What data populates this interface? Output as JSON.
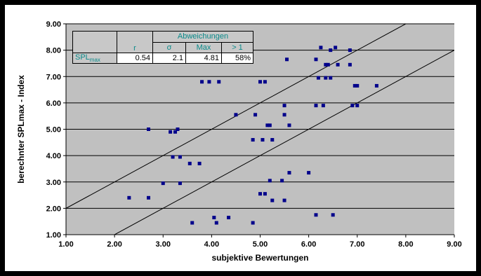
{
  "chart_data": {
    "type": "scatter",
    "xlabel": "subjektive Bewertungen",
    "ylabel": "berechnter SPLmax - Index",
    "xlim": [
      1,
      9
    ],
    "ylim": [
      1,
      9
    ],
    "xticks": [
      "1.00",
      "2.00",
      "3.00",
      "4.00",
      "5.00",
      "6.00",
      "7.00",
      "8.00",
      "9.00"
    ],
    "yticks": [
      "1.00",
      "2.00",
      "3.00",
      "4.00",
      "5.00",
      "6.00",
      "7.00",
      "8.00",
      "9.00"
    ],
    "grid": "horizontal",
    "point_color": "#00008b",
    "lines": [
      {
        "x": [
          1.0,
          8.0
        ],
        "y": [
          2.0,
          9.0
        ]
      },
      {
        "x": [
          2.0,
          9.0
        ],
        "y": [
          1.0,
          8.0
        ]
      }
    ],
    "points": [
      [
        2.3,
        2.4
      ],
      [
        2.7,
        2.4
      ],
      [
        2.7,
        5.0
      ],
      [
        3.0,
        2.95
      ],
      [
        3.15,
        4.9
      ],
      [
        3.2,
        3.95
      ],
      [
        3.25,
        4.9
      ],
      [
        3.3,
        5.0
      ],
      [
        3.35,
        2.95
      ],
      [
        3.35,
        3.95
      ],
      [
        3.55,
        3.7
      ],
      [
        3.6,
        1.45
      ],
      [
        3.75,
        3.7
      ],
      [
        3.8,
        6.8
      ],
      [
        3.95,
        6.8
      ],
      [
        4.05,
        1.65
      ],
      [
        4.1,
        1.45
      ],
      [
        4.15,
        6.8
      ],
      [
        4.35,
        1.65
      ],
      [
        4.5,
        5.55
      ],
      [
        4.85,
        1.45
      ],
      [
        4.85,
        4.6
      ],
      [
        4.9,
        5.55
      ],
      [
        5.0,
        6.8
      ],
      [
        5.0,
        2.55
      ],
      [
        5.05,
        4.6
      ],
      [
        5.1,
        6.8
      ],
      [
        5.1,
        2.55
      ],
      [
        5.15,
        5.15
      ],
      [
        5.2,
        3.05
      ],
      [
        5.2,
        5.15
      ],
      [
        5.25,
        4.6
      ],
      [
        5.25,
        2.3
      ],
      [
        5.45,
        3.05
      ],
      [
        5.5,
        2.3
      ],
      [
        5.5,
        5.55
      ],
      [
        5.5,
        5.9
      ],
      [
        5.55,
        7.65
      ],
      [
        5.6,
        5.15
      ],
      [
        5.6,
        3.35
      ],
      [
        6.0,
        3.35
      ],
      [
        6.15,
        1.75
      ],
      [
        6.15,
        5.9
      ],
      [
        6.15,
        7.65
      ],
      [
        6.2,
        6.95
      ],
      [
        6.25,
        8.1
      ],
      [
        6.3,
        5.9
      ],
      [
        6.35,
        6.95
      ],
      [
        6.35,
        7.45
      ],
      [
        6.4,
        7.45
      ],
      [
        6.45,
        6.95
      ],
      [
        6.45,
        8.0
      ],
      [
        6.5,
        1.75
      ],
      [
        6.55,
        8.1
      ],
      [
        6.6,
        7.45
      ],
      [
        6.85,
        7.45
      ],
      [
        6.85,
        8.0
      ],
      [
        6.9,
        5.9
      ],
      [
        6.95,
        6.65
      ],
      [
        7.0,
        6.65
      ],
      [
        7.0,
        5.9
      ],
      [
        7.4,
        6.65
      ]
    ],
    "stats_table": {
      "group_header": "Abweichungen",
      "columns": [
        "r",
        "σ",
        "Max",
        "> 1"
      ],
      "row_label_main": "SPL",
      "row_label_sub": "max",
      "values": [
        "0.54",
        "2.1",
        "4.81",
        "58%"
      ]
    }
  }
}
